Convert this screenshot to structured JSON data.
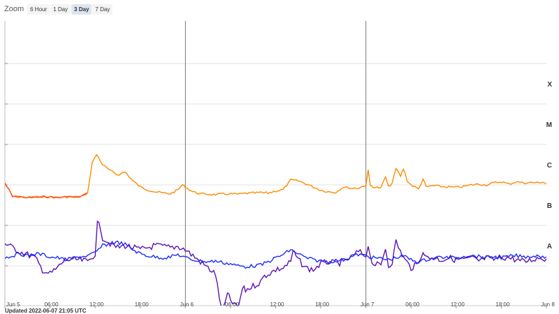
{
  "zoom": {
    "label": "Zoom",
    "options": [
      "6 Hour",
      "1 Day",
      "3 Day",
      "7 Day"
    ],
    "active": "3 Day"
  },
  "updated_text": "Updated 2022-06-07 21:05 UTC",
  "colors": {
    "long_channel": "#ff8a00",
    "long_channel_early": "#ff4a1a",
    "short_channel": "#5b12b5",
    "short_channel_alt": "#1a2cff",
    "grid": "#e3e3e3",
    "day_divider": "#777777"
  },
  "chart_data": {
    "type": "line",
    "x_ticks": [
      "Jun 5",
      "06:00",
      "12:00",
      "18:00",
      "Jun 6",
      "06:00",
      "12:00",
      "18:00",
      "Jun 7",
      "06:00",
      "12:00",
      "18:00",
      "Jun 8"
    ],
    "xlim_hours": [
      0,
      72
    ],
    "flux_levels": [
      "A",
      "B",
      "C",
      "M",
      "X"
    ],
    "day_dividers": [
      "Jun 6",
      "Jun 7"
    ],
    "series": [
      {
        "color": "#ff8a00",
        "points": [
          [
            0,
            1.55
          ],
          [
            1,
            1.22
          ],
          [
            2,
            1.2
          ],
          [
            3,
            1.19
          ],
          [
            4,
            1.2
          ],
          [
            5,
            1.21
          ],
          [
            6,
            1.2
          ],
          [
            7,
            1.19
          ],
          [
            8,
            1.2
          ],
          [
            9,
            1.21
          ],
          [
            10,
            1.2
          ],
          [
            11,
            1.3
          ],
          [
            11.6,
            2.05
          ],
          [
            12.2,
            2.25
          ],
          [
            13,
            2.0
          ],
          [
            14,
            1.85
          ],
          [
            15,
            1.75
          ],
          [
            16,
            1.82
          ],
          [
            17,
            1.6
          ],
          [
            18,
            1.45
          ],
          [
            19,
            1.38
          ],
          [
            20,
            1.33
          ],
          [
            21,
            1.3
          ],
          [
            22,
            1.28
          ],
          [
            23,
            1.38
          ],
          [
            23.6,
            1.5
          ],
          [
            24,
            1.45
          ],
          [
            25,
            1.33
          ],
          [
            26,
            1.28
          ],
          [
            27,
            1.27
          ],
          [
            28,
            1.26
          ],
          [
            29,
            1.27
          ],
          [
            30,
            1.28
          ],
          [
            31,
            1.27
          ],
          [
            32,
            1.29
          ],
          [
            33,
            1.3
          ],
          [
            34,
            1.31
          ],
          [
            35,
            1.3
          ],
          [
            36,
            1.35
          ],
          [
            37,
            1.38
          ],
          [
            38,
            1.62
          ],
          [
            39,
            1.6
          ],
          [
            40,
            1.53
          ],
          [
            41,
            1.45
          ],
          [
            42,
            1.37
          ],
          [
            43,
            1.33
          ],
          [
            44,
            1.32
          ],
          [
            45,
            1.45
          ],
          [
            46,
            1.42
          ],
          [
            47,
            1.42
          ],
          [
            48,
            1.5
          ],
          [
            48.3,
            1.85
          ],
          [
            48.6,
            1.48
          ],
          [
            49,
            1.45
          ],
          [
            50,
            1.42
          ],
          [
            50.6,
            1.7
          ],
          [
            51,
            1.45
          ],
          [
            51.5,
            1.55
          ],
          [
            52,
            1.9
          ],
          [
            52.6,
            1.72
          ],
          [
            53,
            1.9
          ],
          [
            53.5,
            1.6
          ],
          [
            54,
            1.5
          ],
          [
            55,
            1.4
          ],
          [
            55.6,
            1.65
          ],
          [
            56,
            1.45
          ],
          [
            57,
            1.48
          ],
          [
            58,
            1.46
          ],
          [
            59,
            1.45
          ],
          [
            60,
            1.44
          ],
          [
            61,
            1.46
          ],
          [
            62,
            1.5
          ],
          [
            63,
            1.52
          ],
          [
            64,
            1.5
          ],
          [
            65,
            1.55
          ],
          [
            66,
            1.58
          ],
          [
            67,
            1.52
          ],
          [
            68,
            1.58
          ],
          [
            69,
            1.55
          ],
          [
            70,
            1.56
          ],
          [
            71,
            1.55
          ],
          [
            71.5,
            1.58
          ],
          [
            72,
            1.52
          ]
        ]
      },
      {
        "color": "#5b12b5",
        "points": [
          [
            0,
            0.05
          ],
          [
            1,
            -0.05
          ],
          [
            2,
            -0.15
          ],
          [
            3,
            -0.22
          ],
          [
            4,
            -0.3
          ],
          [
            5,
            -0.6
          ],
          [
            6,
            -0.7
          ],
          [
            7,
            -0.55
          ],
          [
            8,
            -0.35
          ],
          [
            9,
            -0.35
          ],
          [
            10,
            -0.35
          ],
          [
            11,
            -0.4
          ],
          [
            12,
            -0.2
          ],
          [
            12.3,
            0.55
          ],
          [
            12.7,
            0.45
          ],
          [
            13,
            0.2
          ],
          [
            14,
            0.05
          ],
          [
            15,
            -0.05
          ],
          [
            16,
            0.0
          ],
          [
            17,
            -0.05
          ],
          [
            18,
            -0.1
          ],
          [
            19,
            -0.05
          ],
          [
            20,
            0.0
          ],
          [
            21,
            -0.02
          ],
          [
            22,
            -0.05
          ],
          [
            23,
            -0.02
          ],
          [
            24,
            -0.1
          ],
          [
            25,
            -0.25
          ],
          [
            26,
            -0.4
          ],
          [
            27,
            -0.55
          ],
          [
            28,
            -0.7
          ],
          [
            28.5,
            -1.3
          ],
          [
            29,
            -1.6
          ],
          [
            29.6,
            -1.2
          ],
          [
            30,
            -1.35
          ],
          [
            31,
            -1.55
          ],
          [
            31.6,
            -1.05
          ],
          [
            32,
            -1.1
          ],
          [
            33,
            -1.0
          ],
          [
            34,
            -0.9
          ],
          [
            34.5,
            -0.75
          ],
          [
            35,
            -0.7
          ],
          [
            36,
            -0.6
          ],
          [
            37,
            -0.55
          ],
          [
            38,
            -0.4
          ],
          [
            38.3,
            -0.15
          ],
          [
            38.7,
            -0.25
          ],
          [
            39,
            -0.35
          ],
          [
            40,
            -0.55
          ],
          [
            41,
            -0.6
          ],
          [
            42,
            -0.45
          ],
          [
            43,
            -0.4
          ],
          [
            44,
            -0.45
          ],
          [
            45,
            -0.4
          ],
          [
            46,
            -0.3
          ],
          [
            47,
            -0.15
          ],
          [
            48,
            -0.25
          ],
          [
            48.3,
            0.05
          ],
          [
            48.6,
            -0.3
          ],
          [
            49,
            -0.45
          ],
          [
            50,
            -0.5
          ],
          [
            50.6,
            -0.05
          ],
          [
            51,
            -0.5
          ],
          [
            51.5,
            -0.4
          ],
          [
            52,
            0.1
          ],
          [
            52.6,
            -0.15
          ],
          [
            53,
            -0.3
          ],
          [
            54,
            -0.55
          ],
          [
            55,
            -0.45
          ],
          [
            55.6,
            -0.1
          ],
          [
            56,
            -0.3
          ],
          [
            57,
            -0.3
          ],
          [
            58,
            -0.35
          ],
          [
            59,
            -0.3
          ],
          [
            60,
            -0.35
          ],
          [
            61,
            -0.32
          ],
          [
            62,
            -0.3
          ],
          [
            63,
            -0.38
          ],
          [
            64,
            -0.3
          ],
          [
            65,
            -0.35
          ],
          [
            66,
            -0.28
          ],
          [
            67,
            -0.3
          ],
          [
            68,
            -0.35
          ],
          [
            69,
            -0.4
          ],
          [
            70,
            -0.35
          ],
          [
            71,
            -0.3
          ],
          [
            72,
            -0.33
          ]
        ]
      },
      {
        "color": "#1a2cff",
        "points": [
          [
            0,
            -0.3
          ],
          [
            1,
            -0.25
          ],
          [
            2,
            -0.2
          ],
          [
            3,
            -0.25
          ],
          [
            4,
            -0.2
          ],
          [
            5,
            -0.22
          ],
          [
            6,
            -0.28
          ],
          [
            7,
            -0.3
          ],
          [
            8,
            -0.35
          ],
          [
            9,
            -0.32
          ],
          [
            10,
            -0.28
          ],
          [
            11,
            -0.25
          ],
          [
            12,
            -0.18
          ],
          [
            13,
            0.0
          ],
          [
            14,
            0.05
          ],
          [
            15,
            0.08
          ],
          [
            16,
            0.03
          ],
          [
            17,
            -0.1
          ],
          [
            18,
            -0.2
          ],
          [
            19,
            -0.25
          ],
          [
            20,
            -0.28
          ],
          [
            21,
            -0.3
          ],
          [
            22,
            -0.28
          ],
          [
            23,
            -0.22
          ],
          [
            24,
            -0.3
          ],
          [
            25,
            -0.35
          ],
          [
            26,
            -0.38
          ],
          [
            27,
            -0.4
          ],
          [
            28,
            -0.38
          ],
          [
            29,
            -0.42
          ],
          [
            30,
            -0.45
          ],
          [
            31,
            -0.5
          ],
          [
            32,
            -0.52
          ],
          [
            33,
            -0.5
          ],
          [
            34,
            -0.48
          ],
          [
            35,
            -0.4
          ],
          [
            36,
            -0.3
          ],
          [
            37,
            -0.22
          ],
          [
            38,
            -0.1
          ],
          [
            39,
            -0.2
          ],
          [
            40,
            -0.3
          ],
          [
            41,
            -0.35
          ],
          [
            42,
            -0.38
          ],
          [
            43,
            -0.4
          ],
          [
            44,
            -0.37
          ],
          [
            45,
            -0.35
          ],
          [
            46,
            -0.28
          ],
          [
            47,
            -0.22
          ],
          [
            48,
            -0.25
          ],
          [
            49,
            -0.3
          ],
          [
            50,
            -0.32
          ],
          [
            51,
            -0.35
          ],
          [
            52,
            -0.3
          ],
          [
            53,
            -0.25
          ],
          [
            54,
            -0.35
          ],
          [
            55,
            -0.4
          ],
          [
            56,
            -0.35
          ],
          [
            57,
            -0.3
          ],
          [
            58,
            -0.28
          ],
          [
            59,
            -0.3
          ],
          [
            60,
            -0.3
          ],
          [
            61,
            -0.28
          ],
          [
            62,
            -0.25
          ],
          [
            63,
            -0.27
          ],
          [
            64,
            -0.3
          ],
          [
            65,
            -0.28
          ],
          [
            66,
            -0.3
          ],
          [
            67,
            -0.27
          ],
          [
            68,
            -0.25
          ],
          [
            69,
            -0.28
          ],
          [
            70,
            -0.26
          ],
          [
            71,
            -0.25
          ],
          [
            72,
            -0.28
          ]
        ]
      }
    ],
    "grid": true
  }
}
